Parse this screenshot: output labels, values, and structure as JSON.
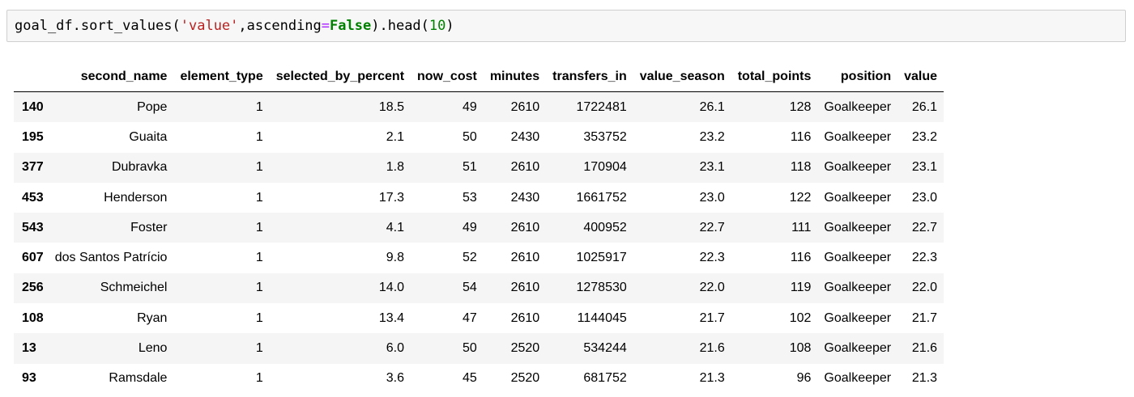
{
  "code_cell": {
    "tokens": {
      "obj": "goal_df",
      "dot1": ".",
      "method1": "sort_values",
      "paren_open1": "(",
      "arg_str": "'value'",
      "comma": ",",
      "kwarg": "ascending",
      "eq": "=",
      "kwval": "False",
      "paren_close1": ")",
      "dot2": ".",
      "method2": "head",
      "paren_open2": "(",
      "arg_num": "10",
      "paren_close2": ")"
    }
  },
  "table": {
    "index_header": "",
    "columns": [
      "second_name",
      "element_type",
      "selected_by_percent",
      "now_cost",
      "minutes",
      "transfers_in",
      "value_season",
      "total_points",
      "position",
      "value"
    ],
    "rows": [
      {
        "index": "140",
        "cells": [
          "Pope",
          "1",
          "18.5",
          "49",
          "2610",
          "1722481",
          "26.1",
          "128",
          "Goalkeeper",
          "26.1"
        ]
      },
      {
        "index": "195",
        "cells": [
          "Guaita",
          "1",
          "2.1",
          "50",
          "2430",
          "353752",
          "23.2",
          "116",
          "Goalkeeper",
          "23.2"
        ]
      },
      {
        "index": "377",
        "cells": [
          "Dubravka",
          "1",
          "1.8",
          "51",
          "2610",
          "170904",
          "23.1",
          "118",
          "Goalkeeper",
          "23.1"
        ]
      },
      {
        "index": "453",
        "cells": [
          "Henderson",
          "1",
          "17.3",
          "53",
          "2430",
          "1661752",
          "23.0",
          "122",
          "Goalkeeper",
          "23.0"
        ]
      },
      {
        "index": "543",
        "cells": [
          "Foster",
          "1",
          "4.1",
          "49",
          "2610",
          "400952",
          "22.7",
          "111",
          "Goalkeeper",
          "22.7"
        ]
      },
      {
        "index": "607",
        "cells": [
          "dos Santos Patrício",
          "1",
          "9.8",
          "52",
          "2610",
          "1025917",
          "22.3",
          "116",
          "Goalkeeper",
          "22.3"
        ]
      },
      {
        "index": "256",
        "cells": [
          "Schmeichel",
          "1",
          "14.0",
          "54",
          "2610",
          "1278530",
          "22.0",
          "119",
          "Goalkeeper",
          "22.0"
        ]
      },
      {
        "index": "108",
        "cells": [
          "Ryan",
          "1",
          "13.4",
          "47",
          "2610",
          "1144045",
          "21.7",
          "102",
          "Goalkeeper",
          "21.7"
        ]
      },
      {
        "index": "13",
        "cells": [
          "Leno",
          "1",
          "6.0",
          "50",
          "2520",
          "534244",
          "21.6",
          "108",
          "Goalkeeper",
          "21.6"
        ]
      },
      {
        "index": "93",
        "cells": [
          "Ramsdale",
          "1",
          "3.6",
          "45",
          "2520",
          "681752",
          "21.3",
          "96",
          "Goalkeeper",
          "21.3"
        ]
      }
    ]
  }
}
